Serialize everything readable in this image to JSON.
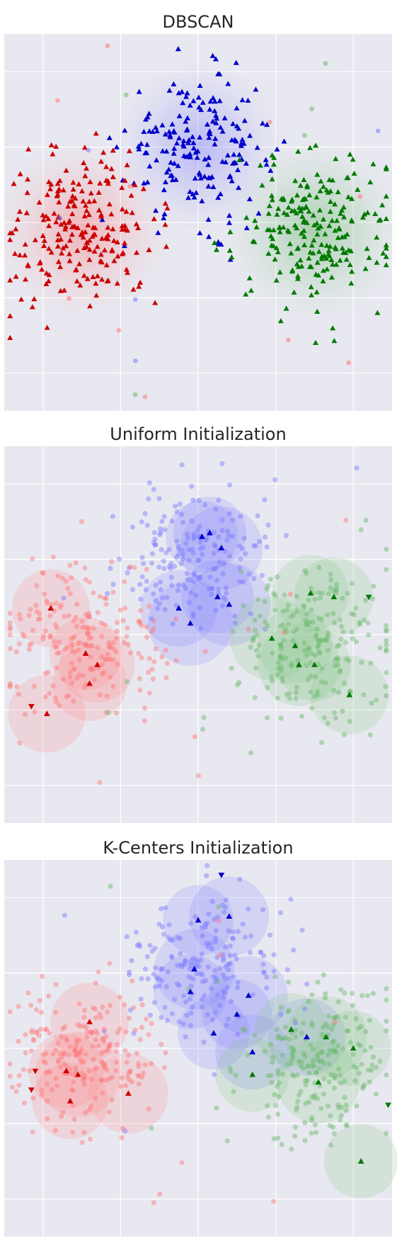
{
  "figure": {
    "background": "#ffffff",
    "axes_facecolor": "#e8e8f0",
    "grid_color": "#ffffff"
  },
  "chart_data": [
    {
      "type": "scatter",
      "title": "DBSCAN",
      "grid": true,
      "tick_labels_shown": false,
      "xlim": [
        -6,
        4
      ],
      "ylim": [
        -5,
        5
      ],
      "colors": {
        "blue": "#0000cc",
        "red": "#cc0000",
        "green": "#007a00"
      },
      "clusters": [
        {
          "color": "blue",
          "center": [
            -1.0,
            2.0
          ],
          "spread": 0.95,
          "points": 190,
          "marker": "triangle-up"
        },
        {
          "color": "red",
          "center": [
            -4.0,
            -0.2
          ],
          "spread": 1.0,
          "points": 220,
          "marker": "triangle-up"
        },
        {
          "color": "green",
          "center": [
            2.0,
            -0.2
          ],
          "spread": 1.0,
          "points": 220,
          "marker": "triangle-up"
        }
      ],
      "noise_points": 20,
      "density_halo": true
    },
    {
      "type": "scatter",
      "title": "Uniform Initialization",
      "grid": true,
      "tick_labels_shown": false,
      "xlim": [
        -6,
        4
      ],
      "ylim": [
        -5,
        5
      ],
      "colors": {
        "blue": "#0000cc",
        "red": "#cc0000",
        "green": "#007a00"
      },
      "clusters": [
        {
          "color": "blue",
          "center": [
            -1.0,
            2.0
          ],
          "spread": 0.95,
          "points": 190
        },
        {
          "color": "red",
          "center": [
            -4.0,
            -0.2
          ],
          "spread": 1.0,
          "points": 220
        },
        {
          "color": "green",
          "center": [
            2.0,
            -0.2
          ],
          "spread": 1.0,
          "points": 220
        }
      ],
      "centers": [
        {
          "color": "blue",
          "x": -0.9,
          "y": 2.6,
          "marker": "triangle-up"
        },
        {
          "color": "blue",
          "x": -0.4,
          "y": 2.3,
          "marker": "triangle-up"
        },
        {
          "color": "blue",
          "x": -0.7,
          "y": 2.7,
          "marker": "triangle-up"
        },
        {
          "color": "blue",
          "x": -0.5,
          "y": 1.0,
          "marker": "triangle-up"
        },
        {
          "color": "blue",
          "x": -0.2,
          "y": 0.8,
          "marker": "triangle-up"
        },
        {
          "color": "blue",
          "x": -1.2,
          "y": 0.3,
          "marker": "triangle-up"
        },
        {
          "color": "blue",
          "x": -1.5,
          "y": 0.7,
          "marker": "triangle-up"
        },
        {
          "color": "red",
          "x": -4.8,
          "y": 0.7,
          "marker": "triangle-up"
        },
        {
          "color": "red",
          "x": -3.9,
          "y": -0.5,
          "marker": "triangle-up"
        },
        {
          "color": "red",
          "x": -3.6,
          "y": -0.8,
          "marker": "triangle-up"
        },
        {
          "color": "red",
          "x": -3.8,
          "y": -1.3,
          "marker": "triangle-up"
        },
        {
          "color": "red",
          "x": -4.9,
          "y": -2.1,
          "marker": "triangle-up"
        },
        {
          "color": "green",
          "x": 1.9,
          "y": 1.1,
          "marker": "triangle-up"
        },
        {
          "color": "green",
          "x": 2.5,
          "y": 1.0,
          "marker": "triangle-up"
        },
        {
          "color": "green",
          "x": 0.9,
          "y": -0.1,
          "marker": "triangle-up"
        },
        {
          "color": "green",
          "x": 1.5,
          "y": -0.3,
          "marker": "triangle-up"
        },
        {
          "color": "green",
          "x": 2.0,
          "y": -0.8,
          "marker": "triangle-up"
        },
        {
          "color": "green",
          "x": 1.6,
          "y": -0.8,
          "marker": "triangle-up"
        },
        {
          "color": "green",
          "x": 2.9,
          "y": -1.6,
          "marker": "triangle-up"
        },
        {
          "color": "red",
          "x": -5.3,
          "y": -1.9,
          "marker": "triangle-down"
        },
        {
          "color": "green",
          "x": 3.4,
          "y": 1.0,
          "marker": "triangle-down"
        }
      ],
      "noise_points": 20
    },
    {
      "type": "scatter",
      "title": "K-Centers Initialization",
      "grid": true,
      "tick_labels_shown": false,
      "xlim": [
        -6,
        4
      ],
      "ylim": [
        -5,
        5
      ],
      "colors": {
        "blue": "#0000cc",
        "red": "#cc0000",
        "green": "#007a00"
      },
      "clusters": [
        {
          "color": "blue",
          "center": [
            -1.0,
            2.0
          ],
          "spread": 0.95,
          "points": 190
        },
        {
          "color": "red",
          "center": [
            -4.0,
            -0.2
          ],
          "spread": 1.0,
          "points": 220
        },
        {
          "color": "green",
          "center": [
            2.0,
            -0.2
          ],
          "spread": 1.0,
          "points": 220
        }
      ],
      "centers": [
        {
          "color": "blue",
          "x": -1.0,
          "y": 3.4,
          "marker": "triangle-up"
        },
        {
          "color": "blue",
          "x": -0.2,
          "y": 3.5,
          "marker": "triangle-up"
        },
        {
          "color": "blue",
          "x": -1.1,
          "y": 2.1,
          "marker": "triangle-up"
        },
        {
          "color": "blue",
          "x": -1.2,
          "y": 1.5,
          "marker": "triangle-up"
        },
        {
          "color": "blue",
          "x": 0.0,
          "y": 0.9,
          "marker": "triangle-up"
        },
        {
          "color": "blue",
          "x": 0.3,
          "y": 1.4,
          "marker": "triangle-up"
        },
        {
          "color": "blue",
          "x": -0.6,
          "y": 0.4,
          "marker": "triangle-up"
        },
        {
          "color": "blue",
          "x": 0.4,
          "y": -0.1,
          "marker": "triangle-up"
        },
        {
          "color": "blue",
          "x": 1.8,
          "y": 0.3,
          "marker": "triangle-up"
        },
        {
          "color": "red",
          "x": -3.8,
          "y": 0.7,
          "marker": "triangle-up"
        },
        {
          "color": "red",
          "x": -4.1,
          "y": -0.7,
          "marker": "triangle-up"
        },
        {
          "color": "red",
          "x": -4.4,
          "y": -0.6,
          "marker": "triangle-up"
        },
        {
          "color": "red",
          "x": -2.8,
          "y": -1.2,
          "marker": "triangle-up"
        },
        {
          "color": "red",
          "x": -4.3,
          "y": -1.4,
          "marker": "triangle-up"
        },
        {
          "color": "green",
          "x": 1.4,
          "y": 0.5,
          "marker": "triangle-up"
        },
        {
          "color": "green",
          "x": 2.3,
          "y": 0.3,
          "marker": "triangle-up"
        },
        {
          "color": "green",
          "x": 3.0,
          "y": 0.0,
          "marker": "triangle-up"
        },
        {
          "color": "green",
          "x": 0.4,
          "y": -0.7,
          "marker": "triangle-up"
        },
        {
          "color": "green",
          "x": 2.1,
          "y": -0.9,
          "marker": "triangle-up"
        },
        {
          "color": "green",
          "x": 3.2,
          "y": -3.0,
          "marker": "triangle-up"
        },
        {
          "color": "red",
          "x": -5.2,
          "y": -0.6,
          "marker": "triangle-down"
        },
        {
          "color": "red",
          "x": -5.3,
          "y": -1.1,
          "marker": "triangle-down"
        },
        {
          "color": "blue",
          "x": -0.4,
          "y": 4.6,
          "marker": "triangle-down"
        },
        {
          "color": "green",
          "x": 3.9,
          "y": -1.5,
          "marker": "triangle-down"
        }
      ],
      "noise_points": 20
    }
  ]
}
